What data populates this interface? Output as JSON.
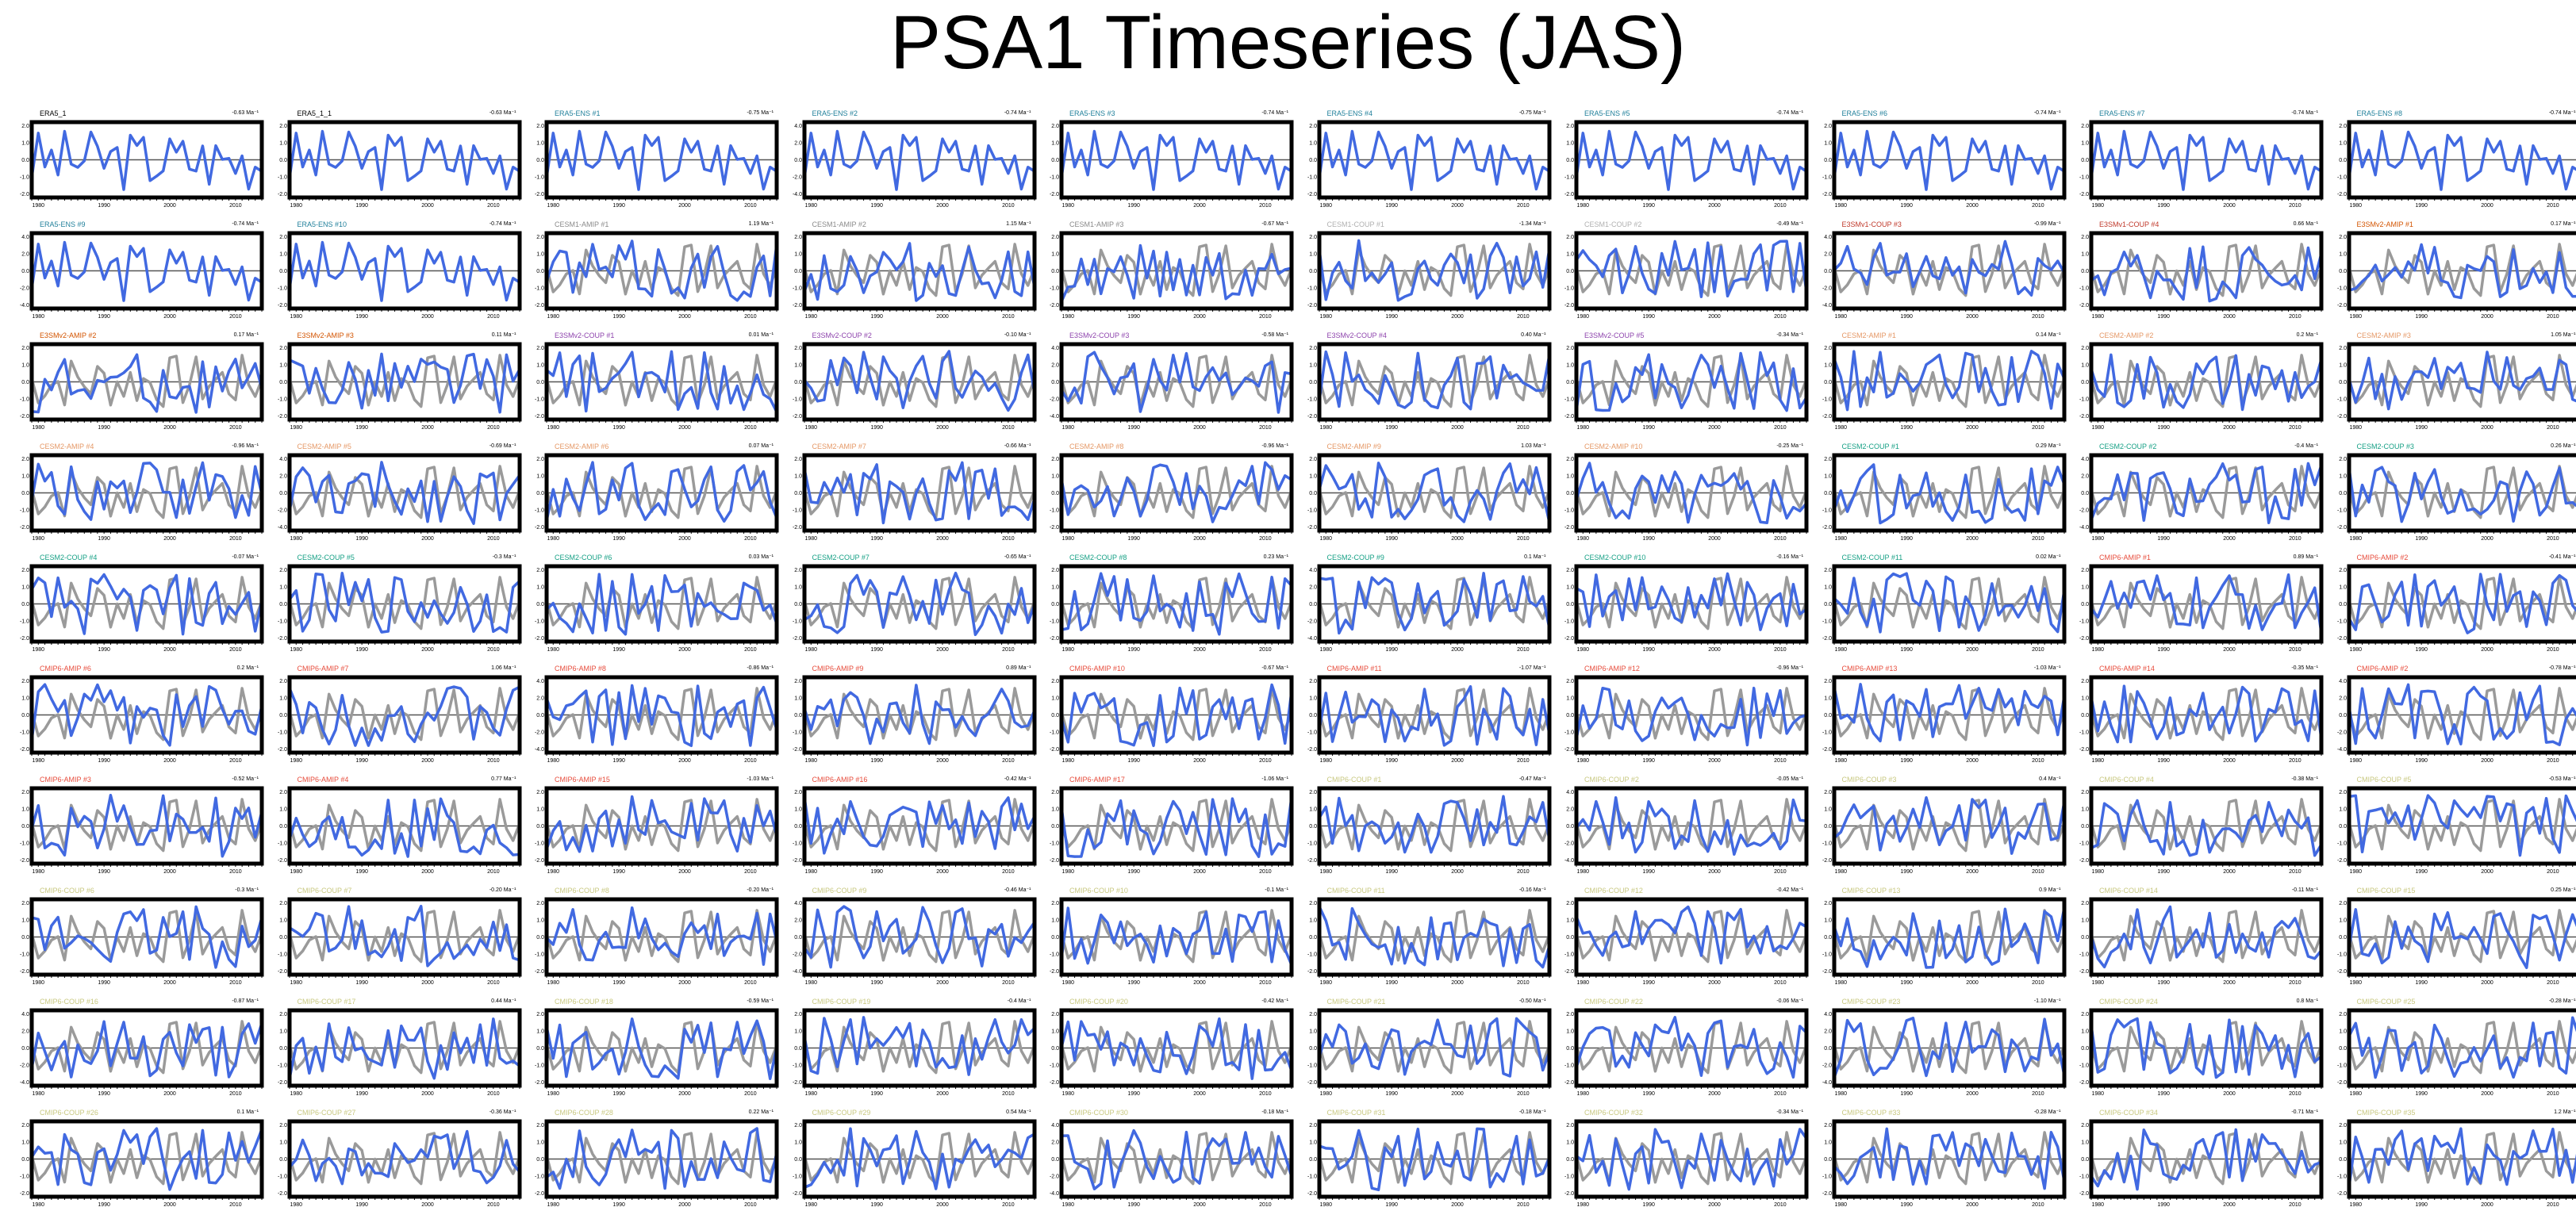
{
  "title": "PSA1 Timeseries (JAS)",
  "colors": {
    "observed": "#9a9a9a",
    "model": "#4169e1",
    "zero_line": "#555555",
    "frame": "#000000",
    "label_ERA5": "#000000",
    "label_ERA5-ENS": "#1f7f9a",
    "label_CESM1-AMIP": "#8a8a8a",
    "label_CESM1-COUP": "#b0b0b0",
    "label_E3SMv1-COUP": "#c0392b",
    "label_E3SMv2-AMIP": "#d35400",
    "label_E3SMv2-COUP": "#8e44ad",
    "label_CESM2-AMIP": "#e59866",
    "label_CESM2-COUP": "#16a085",
    "label_CMIP6-AMIP": "#e74c3c",
    "label_CMIP6-COUP": "#c8c880"
  },
  "chart_data": {
    "type": "line",
    "layout": "small multiples, 10 rows x 10 columns",
    "x_ticks": [
      "1980",
      "1990",
      "2000",
      "2010"
    ],
    "xlim": [
      1979,
      2014
    ],
    "y_ticks": [
      "2.0",
      "1.0",
      "0.0",
      "-1.0",
      "-2.0"
    ],
    "y_ticks_alt": [
      "4.0",
      "2.0",
      "0.0",
      "-2.0",
      "-4.0"
    ],
    "ylim": [
      -2.2,
      2.2
    ],
    "grey_line": "ERA5 reference series",
    "blue_line": "member series",
    "panels": [
      {
        "label": "ERA5_1",
        "trend": "-0.63 Ma⁻¹",
        "label_color": "#000000"
      },
      {
        "label": "ERA5_1_1",
        "trend": "-0.63 Ma⁻¹",
        "label_color": "#000000"
      },
      {
        "label": "ERA5-ENS   #1",
        "trend": "-0.75 Ma⁻¹",
        "label_color": "#1f7f9a"
      },
      {
        "label": "ERA5-ENS   #2",
        "trend": "-0.74 Ma⁻¹",
        "label_color": "#1f7f9a"
      },
      {
        "label": "ERA5-ENS   #3",
        "trend": "-0.74 Ma⁻¹",
        "label_color": "#1f7f9a"
      },
      {
        "label": "ERA5-ENS   #4",
        "trend": "-0.75 Ma⁻¹",
        "label_color": "#1f7f9a"
      },
      {
        "label": "ERA5-ENS   #5",
        "trend": "-0.74 Ma⁻¹",
        "label_color": "#1f7f9a"
      },
      {
        "label": "ERA5-ENS   #6",
        "trend": "-0.74 Ma⁻¹",
        "label_color": "#1f7f9a"
      },
      {
        "label": "ERA5-ENS   #7",
        "trend": "-0.74 Ma⁻¹",
        "label_color": "#1f7f9a"
      },
      {
        "label": "ERA5-ENS   #8",
        "trend": "-0.74 Ma⁻¹",
        "label_color": "#1f7f9a"
      },
      {
        "label": "ERA5-ENS   #9",
        "trend": "-0.74 Ma⁻¹",
        "label_color": "#1f7f9a"
      },
      {
        "label": "ERA5-ENS   #10",
        "trend": "-0.74 Ma⁻¹",
        "label_color": "#1f7f9a"
      },
      {
        "label": "CESM1-AMIP #1",
        "trend": "1.19 Ma⁻¹",
        "label_color": "#8a8a8a"
      },
      {
        "label": "CESM1-AMIP #2",
        "trend": "1.15 Ma⁻¹",
        "label_color": "#8a8a8a"
      },
      {
        "label": "CESM1-AMIP #3",
        "trend": "-0.67 Ma⁻¹",
        "label_color": "#8a8a8a"
      },
      {
        "label": "CESM1-COUP #1",
        "trend": "-1.34 Ma⁻¹",
        "label_color": "#b0b0b0"
      },
      {
        "label": "CESM1-COUP #2",
        "trend": "-0.49 Ma⁻¹",
        "label_color": "#b0b0b0"
      },
      {
        "label": "E3SMv1-COUP #3",
        "trend": "-0.99 Ma⁻¹",
        "label_color": "#c0392b"
      },
      {
        "label": "E3SMv1-COUP #4",
        "trend": "0.66 Ma⁻¹",
        "label_color": "#c0392b"
      },
      {
        "label": "E3SMv2-AMIP #1",
        "trend": "0.17 Ma⁻¹",
        "label_color": "#d35400"
      },
      {
        "label": "E3SMv2-AMIP #2",
        "trend": "0.17 Ma⁻¹",
        "label_color": "#d35400"
      },
      {
        "label": "E3SMv2-AMIP #3",
        "trend": "0.11 Ma⁻¹",
        "label_color": "#d35400"
      },
      {
        "label": "E3SMv2-COUP #1",
        "trend": "0.01 Ma⁻¹",
        "label_color": "#8e44ad"
      },
      {
        "label": "E3SMv2-COUP #2",
        "trend": "-0.10 Ma⁻¹",
        "label_color": "#8e44ad"
      },
      {
        "label": "E3SMv2-COUP #3",
        "trend": "-0.58 Ma⁻¹",
        "label_color": "#8e44ad"
      },
      {
        "label": "E3SMv2-COUP #4",
        "trend": "0.40 Ma⁻¹",
        "label_color": "#8e44ad"
      },
      {
        "label": "E3SMv2-COUP #5",
        "trend": "-0.34 Ma⁻¹",
        "label_color": "#8e44ad"
      },
      {
        "label": "CESM2-AMIP #1",
        "trend": "0.14 Ma⁻¹",
        "label_color": "#e59866"
      },
      {
        "label": "CESM2-AMIP #2",
        "trend": "0.2 Ma⁻¹",
        "label_color": "#e59866"
      },
      {
        "label": "CESM2-AMIP #3",
        "trend": "1.05 Ma⁻¹",
        "label_color": "#e59866"
      },
      {
        "label": "CESM2-AMIP #4",
        "trend": "-0.96 Ma⁻¹",
        "label_color": "#e59866"
      },
      {
        "label": "CESM2-AMIP #5",
        "trend": "-0.69 Ma⁻¹",
        "label_color": "#e59866"
      },
      {
        "label": "CESM2-AMIP #6",
        "trend": "0.07 Ma⁻¹",
        "label_color": "#e59866"
      },
      {
        "label": "CESM2-AMIP #7",
        "trend": "-0.66 Ma⁻¹",
        "label_color": "#e59866"
      },
      {
        "label": "CESM2-AMIP #8",
        "trend": "-0.96 Ma⁻¹",
        "label_color": "#e59866"
      },
      {
        "label": "CESM2-AMIP #9",
        "trend": "1.03 Ma⁻¹",
        "label_color": "#e59866"
      },
      {
        "label": "CESM2-AMIP #10",
        "trend": "-0.25 Ma⁻¹",
        "label_color": "#e59866"
      },
      {
        "label": "CESM2-COUP #1",
        "trend": "0.29 Ma⁻¹",
        "label_color": "#16a085"
      },
      {
        "label": "CESM2-COUP #2",
        "trend": "-0.4 Ma⁻¹",
        "label_color": "#16a085"
      },
      {
        "label": "CESM2-COUP #3",
        "trend": "0.26 Ma⁻¹",
        "label_color": "#16a085"
      },
      {
        "label": "CESM2-COUP #4",
        "trend": "-0.07 Ma⁻¹",
        "label_color": "#16a085"
      },
      {
        "label": "CESM2-COUP #5",
        "trend": "-0.3 Ma⁻¹",
        "label_color": "#16a085"
      },
      {
        "label": "CESM2-COUP #6",
        "trend": "0.03 Ma⁻¹",
        "label_color": "#16a085"
      },
      {
        "label": "CESM2-COUP #7",
        "trend": "-0.65 Ma⁻¹",
        "label_color": "#16a085"
      },
      {
        "label": "CESM2-COUP #8",
        "trend": "0.23 Ma⁻¹",
        "label_color": "#16a085"
      },
      {
        "label": "CESM2-COUP #9",
        "trend": "0.1 Ma⁻¹",
        "label_color": "#16a085"
      },
      {
        "label": "CESM2-COUP #10",
        "trend": "-0.16 Ma⁻¹",
        "label_color": "#16a085"
      },
      {
        "label": "CESM2-COUP #11",
        "trend": "0.02 Ma⁻¹",
        "label_color": "#16a085"
      },
      {
        "label": "CMIP6-AMIP #1",
        "trend": "0.89 Ma⁻¹",
        "label_color": "#e74c3c"
      },
      {
        "label": "CMIP6-AMIP #2",
        "trend": "-0.41 Ma⁻¹",
        "label_color": "#e74c3c"
      },
      {
        "label": "CMIP6-AMIP #6",
        "trend": "0.2 Ma⁻¹",
        "label_color": "#e74c3c"
      },
      {
        "label": "CMIP6-AMIP #7",
        "trend": "1.06 Ma⁻¹",
        "label_color": "#e74c3c"
      },
      {
        "label": "CMIP6-AMIP #8",
        "trend": "-0.86 Ma⁻¹",
        "label_color": "#e74c3c"
      },
      {
        "label": "CMIP6-AMIP #9",
        "trend": "0.89 Ma⁻¹",
        "label_color": "#e74c3c"
      },
      {
        "label": "CMIP6-AMIP #10",
        "trend": "-0.67 Ma⁻¹",
        "label_color": "#e74c3c"
      },
      {
        "label": "CMIP6-AMIP #11",
        "trend": "-1.07 Ma⁻¹",
        "label_color": "#e74c3c"
      },
      {
        "label": "CMIP6-AMIP #12",
        "trend": "-0.96 Ma⁻¹",
        "label_color": "#e74c3c"
      },
      {
        "label": "CMIP6-AMIP #13",
        "trend": "-1.03 Ma⁻¹",
        "label_color": "#e74c3c"
      },
      {
        "label": "CMIP6-AMIP #14",
        "trend": "-0.35 Ma⁻¹",
        "label_color": "#e74c3c"
      },
      {
        "label": "CMIP6-AMIP #2",
        "trend": "-0.78 Ma⁻¹",
        "label_color": "#e74c3c"
      },
      {
        "label": "CMIP6-AMIP #3",
        "trend": "-0.52 Ma⁻¹",
        "label_color": "#e74c3c"
      },
      {
        "label": "CMIP6-AMIP #4",
        "trend": "0.77 Ma⁻¹",
        "label_color": "#e74c3c"
      },
      {
        "label": "CMIP6-AMIP #15",
        "trend": "-1.03 Ma⁻¹",
        "label_color": "#e74c3c"
      },
      {
        "label": "CMIP6-AMIP #16",
        "trend": "-0.42 Ma⁻¹",
        "label_color": "#e74c3c"
      },
      {
        "label": "CMIP6-AMIP #17",
        "trend": "-1.06 Ma⁻¹",
        "label_color": "#e74c3c"
      },
      {
        "label": "CMIP6-COUP #1",
        "trend": "-0.47 Ma⁻¹",
        "label_color": "#c8c880"
      },
      {
        "label": "CMIP6-COUP #2",
        "trend": "-0.05 Ma⁻¹",
        "label_color": "#c8c880"
      },
      {
        "label": "CMIP6-COUP #3",
        "trend": "0.4 Ma⁻¹",
        "label_color": "#c8c880"
      },
      {
        "label": "CMIP6-COUP #4",
        "trend": "-0.38 Ma⁻¹",
        "label_color": "#c8c880"
      },
      {
        "label": "CMIP6-COUP #5",
        "trend": "-0.53 Ma⁻¹",
        "label_color": "#c8c880"
      },
      {
        "label": "CMIP6-COUP #6",
        "trend": "-0.3 Ma⁻¹",
        "label_color": "#c8c880"
      },
      {
        "label": "CMIP6-COUP #7",
        "trend": "-0.20 Ma⁻¹",
        "label_color": "#c8c880"
      },
      {
        "label": "CMIP6-COUP #8",
        "trend": "-0.20 Ma⁻¹",
        "label_color": "#c8c880"
      },
      {
        "label": "CMIP6-COUP #9",
        "trend": "-0.46 Ma⁻¹",
        "label_color": "#c8c880"
      },
      {
        "label": "CMIP6-COUP #10",
        "trend": "-0.1 Ma⁻¹",
        "label_color": "#c8c880"
      },
      {
        "label": "CMIP6-COUP #11",
        "trend": "-0.16 Ma⁻¹",
        "label_color": "#c8c880"
      },
      {
        "label": "CMIP6-COUP #12",
        "trend": "-0.42 Ma⁻¹",
        "label_color": "#c8c880"
      },
      {
        "label": "CMIP6-COUP #13",
        "trend": "0.9 Ma⁻¹",
        "label_color": "#c8c880"
      },
      {
        "label": "CMIP6-COUP #14",
        "trend": "-0.11 Ma⁻¹",
        "label_color": "#c8c880"
      },
      {
        "label": "CMIP6-COUP #15",
        "trend": "0.25 Ma⁻¹",
        "label_color": "#c8c880"
      },
      {
        "label": "CMIP6-COUP #16",
        "trend": "-0.87 Ma⁻¹",
        "label_color": "#c8c880"
      },
      {
        "label": "CMIP6-COUP #17",
        "trend": "0.44 Ma⁻¹",
        "label_color": "#c8c880"
      },
      {
        "label": "CMIP6-COUP #18",
        "trend": "-0.59 Ma⁻¹",
        "label_color": "#c8c880"
      },
      {
        "label": "CMIP6-COUP #19",
        "trend": "-0.4 Ma⁻¹",
        "label_color": "#c8c880"
      },
      {
        "label": "CMIP6-COUP #20",
        "trend": "-0.42 Ma⁻¹",
        "label_color": "#c8c880"
      },
      {
        "label": "CMIP6-COUP #21",
        "trend": "-0.50 Ma⁻¹",
        "label_color": "#c8c880"
      },
      {
        "label": "CMIP6-COUP #22",
        "trend": "-0.06 Ma⁻¹",
        "label_color": "#c8c880"
      },
      {
        "label": "CMIP6-COUP #23",
        "trend": "-1.10 Ma⁻¹",
        "label_color": "#c8c880"
      },
      {
        "label": "CMIP6-COUP #24",
        "trend": "0.8 Ma⁻¹",
        "label_color": "#c8c880"
      },
      {
        "label": "CMIP6-COUP #25",
        "trend": "-0.28 Ma⁻¹",
        "label_color": "#c8c880"
      },
      {
        "label": "CMIP6-COUP #26",
        "trend": "0.1 Ma⁻¹",
        "label_color": "#c8c880"
      },
      {
        "label": "CMIP6-COUP #27",
        "trend": "-0.36 Ma⁻¹",
        "label_color": "#c8c880"
      },
      {
        "label": "CMIP6-COUP #28",
        "trend": "0.22 Ma⁻¹",
        "label_color": "#c8c880"
      },
      {
        "label": "CMIP6-COUP #29",
        "trend": "0.54 Ma⁻¹",
        "label_color": "#c8c880"
      },
      {
        "label": "CMIP6-COUP #30",
        "trend": "-0.18 Ma⁻¹",
        "label_color": "#c8c880"
      },
      {
        "label": "CMIP6-COUP #31",
        "trend": "-0.18 Ma⁻¹",
        "label_color": "#c8c880"
      },
      {
        "label": "CMIP6-COUP #32",
        "trend": "-0.34 Ma⁻¹",
        "label_color": "#c8c880"
      },
      {
        "label": "CMIP6-COUP #33",
        "trend": "-0.28 Ma⁻¹",
        "label_color": "#c8c880"
      },
      {
        "label": "CMIP6-COUP #34",
        "trend": "-0.71 Ma⁻¹",
        "label_color": "#c8c880"
      },
      {
        "label": "CMIP6-COUP #35",
        "trend": "1.2 Ma⁻¹",
        "label_color": "#c8c880"
      }
    ]
  }
}
